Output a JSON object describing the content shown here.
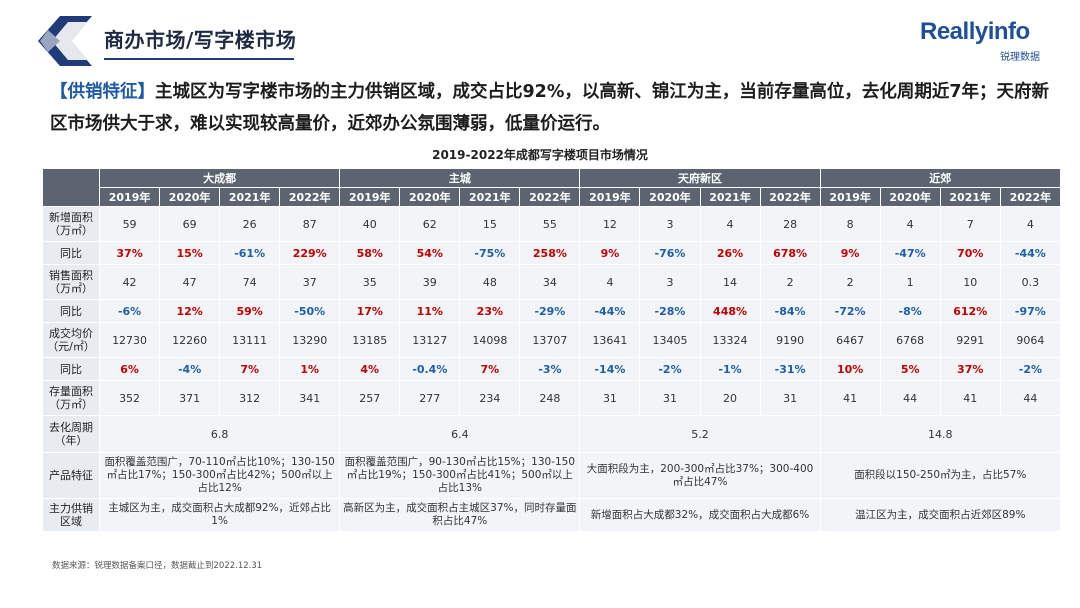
{
  "header": {
    "title": "商办市场/写字楼市场",
    "brand_name": "Reallyinfo",
    "brand_sub": "锐理数据"
  },
  "summary": {
    "tag": "【供销特征】",
    "text": "主城区为写字楼市场的主力供销区域，成交占比92%，以高新、锦江为主，当前存量高位，去化周期近7年；天府新区市场供大于求，难以实现较高量价，近郊办公氛围薄弱，低量价运行。"
  },
  "table": {
    "title": "2019-2022年成都写字楼项目市场情况",
    "regions": [
      "大成都",
      "主城",
      "天府新区",
      "近郊"
    ],
    "years": [
      "2019年",
      "2020年",
      "2021年",
      "2022年"
    ],
    "rows": [
      {
        "label": "新增面积\n（万㎡）",
        "values": [
          "59",
          "69",
          "26",
          "87",
          "40",
          "62",
          "15",
          "55",
          "12",
          "3",
          "4",
          "28",
          "8",
          "4",
          "7",
          "4"
        ]
      },
      {
        "label": "同比",
        "values": [
          "37%",
          "15%",
          "-61%",
          "229%",
          "58%",
          "54%",
          "-75%",
          "258%",
          "9%",
          "-76%",
          "26%",
          "678%",
          "9%",
          "-47%",
          "70%",
          "-44%"
        ]
      },
      {
        "label": "销售面积\n（万㎡）",
        "values": [
          "42",
          "47",
          "74",
          "37",
          "35",
          "39",
          "48",
          "34",
          "4",
          "3",
          "14",
          "2",
          "2",
          "1",
          "10",
          "0.3"
        ]
      },
      {
        "label": "同比",
        "values": [
          "-6%",
          "12%",
          "59%",
          "-50%",
          "17%",
          "11%",
          "23%",
          "-29%",
          "-44%",
          "-28%",
          "448%",
          "-84%",
          "-72%",
          "-8%",
          "612%",
          "-97%"
        ]
      },
      {
        "label": "成交均价\n（元/㎡）",
        "values": [
          "12730",
          "12260",
          "13111",
          "13290",
          "13185",
          "13127",
          "14098",
          "13707",
          "13641",
          "13405",
          "13324",
          "9190",
          "6467",
          "6768",
          "9291",
          "9064"
        ]
      },
      {
        "label": "同比",
        "values": [
          "6%",
          "-4%",
          "7%",
          "1%",
          "4%",
          "-0.4%",
          "7%",
          "-3%",
          "-14%",
          "-2%",
          "-1%",
          "-31%",
          "10%",
          "5%",
          "37%",
          "-2%"
        ]
      },
      {
        "label": "存量面积\n（万㎡）",
        "values": [
          "352",
          "371",
          "312",
          "341",
          "257",
          "277",
          "234",
          "248",
          "31",
          "31",
          "20",
          "31",
          "41",
          "44",
          "41",
          "44"
        ]
      }
    ],
    "cycle": {
      "label": "去化周期\n（年）",
      "values": [
        "6.8",
        "6.4",
        "5.2",
        "14.8"
      ]
    },
    "features": {
      "label": "产品特征",
      "values": [
        "面积覆盖范围广，70-110㎡占比10%；130-150㎡占比17%；150-300㎡占比42%；500㎡以上占比12%",
        "面积覆盖范围广，90-130㎡占比15%；130-150㎡占比19%；150-300㎡占比41%；500㎡以上占比13%",
        "大面积段为主，200-300㎡占比37%；300-400㎡占比47%",
        "面积段以150-250㎡为主，占比57%"
      ]
    },
    "area": {
      "label": "主力供销\n区域",
      "values": [
        "主城区为主，成交面积占大成都92%，近郊占比1%",
        "高新区为主，成交面积占主城区37%，同时存量面积占比47%",
        "新增面积占大成都32%，成交面积占大成都6%",
        "温江区为主，成交面积占近郊区89%"
      ]
    }
  },
  "footnote": "数据来源：锐理数据备案口径，数据截止到2022.12.31",
  "colors": {
    "positive": "#c00000",
    "negative": "#1f5fa8",
    "header_bg": "#5b6470",
    "cell_bg": "#f2f4f7"
  }
}
